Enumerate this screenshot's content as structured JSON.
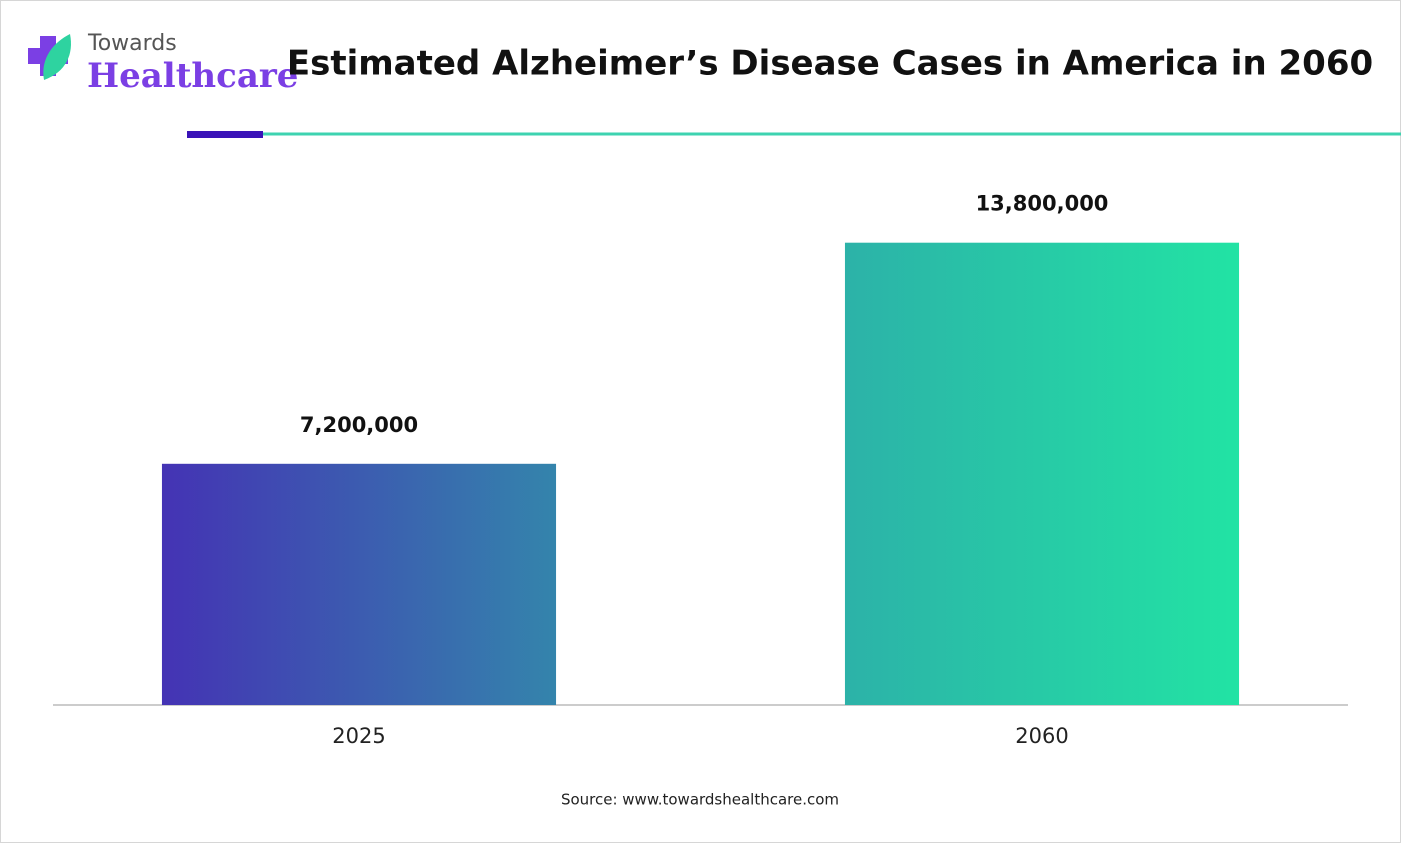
{
  "brand": {
    "line1": "Towards",
    "line2": "Healthcare"
  },
  "chart_data": {
    "type": "bar",
    "title": "Estimated Alzheimer’s Disease Cases in America in 2060",
    "categories": [
      "2025",
      "2060"
    ],
    "values": [
      7200000,
      13800000
    ],
    "value_labels": [
      "7,200,000",
      "13,800,000"
    ],
    "gradients": [
      [
        "#4433b4",
        "#3484ac"
      ],
      [
        "#2cb2a8",
        "#22e3a4"
      ]
    ],
    "ylim": [
      0,
      16000000
    ],
    "source": "Source: www.towardshealthcare.com"
  }
}
